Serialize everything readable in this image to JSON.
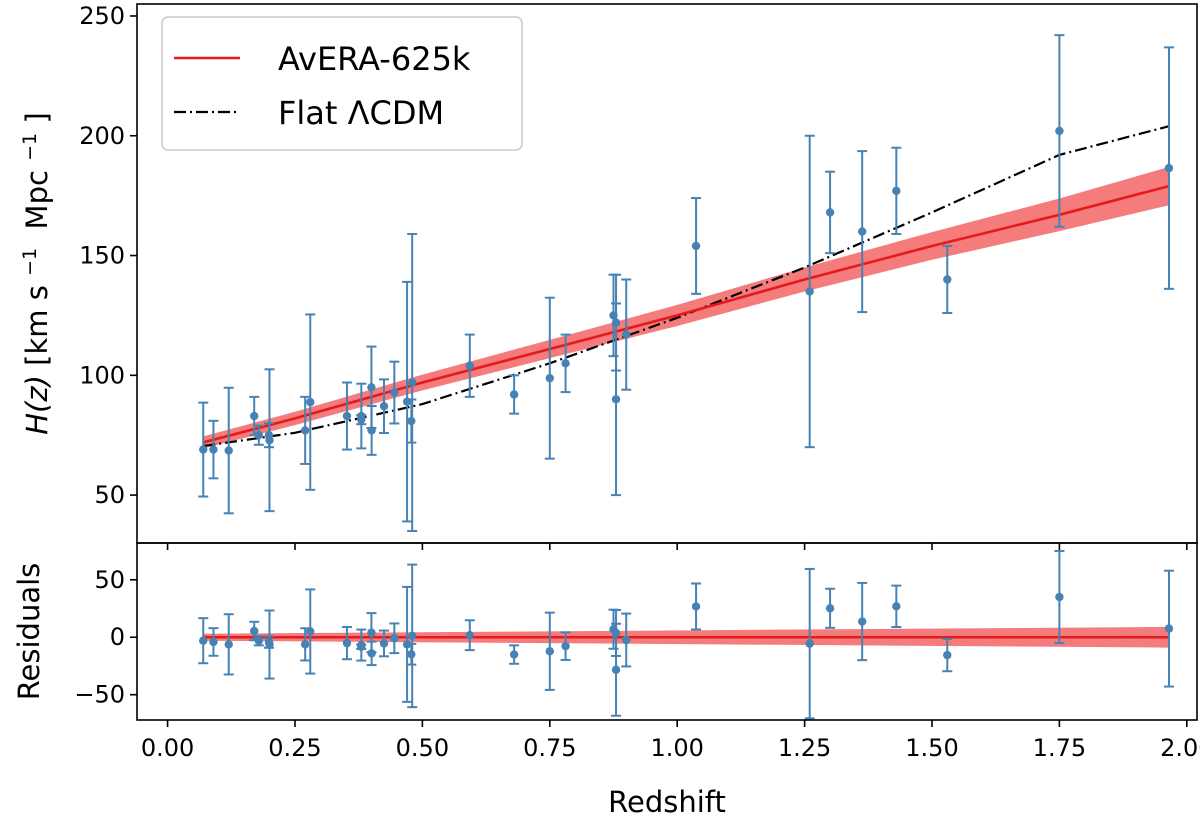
{
  "colors": {
    "data_points": "#4682b4",
    "model_line": "#e41a1c",
    "model_band": "#f47c7c",
    "lcdm_line": "#000000"
  },
  "chart_data": [
    {
      "panel": "main",
      "type": "scatter",
      "ylabel_italic": "H(z)",
      "ylabel_units": "[km s",
      "ylabel_sup1": "−1",
      "ylabel_mid": " Mpc",
      "ylabel_sup2": "−1",
      "ylabel_close": "]",
      "xlim": [
        -0.06,
        2.02
      ],
      "ylim": [
        30,
        255
      ],
      "yticks": [
        50,
        100,
        150,
        200,
        250
      ],
      "ytick_labels": [
        "50",
        "100",
        "150",
        "200",
        "250"
      ],
      "legend": {
        "placement": "top-left",
        "entries": [
          {
            "label": "AvERA-625k",
            "style": "solid-red"
          },
          {
            "label": "Flat ΛCDM",
            "style": "dashdot-black"
          }
        ]
      },
      "observations": {
        "z": [
          0.07,
          0.09,
          0.12,
          0.17,
          0.179,
          0.199,
          0.2,
          0.27,
          0.28,
          0.352,
          0.38,
          0.3802,
          0.4,
          0.4004,
          0.4247,
          0.44497,
          0.47,
          0.4783,
          0.48,
          0.593,
          0.68,
          0.75,
          0.781,
          0.875,
          0.88,
          0.88,
          0.9,
          1.037,
          1.26,
          1.3,
          1.363,
          1.43,
          1.53,
          1.75,
          1.965
        ],
        "H": [
          69,
          69,
          68.6,
          83,
          75,
          75,
          72.9,
          77,
          88.8,
          83,
          81.5,
          83,
          95,
          77,
          87.1,
          92.8,
          89,
          80.9,
          97,
          104,
          92,
          98.8,
          105,
          125,
          90,
          122,
          117,
          154,
          135,
          168,
          160,
          177,
          140,
          202,
          186.5
        ],
        "err": [
          19.6,
          12,
          26.2,
          8,
          4,
          5,
          29.6,
          14,
          36.6,
          14,
          1.9,
          13.5,
          17,
          10.2,
          11.2,
          12.9,
          50,
          9,
          62,
          13,
          8,
          33.6,
          12,
          17,
          40,
          20,
          23,
          20,
          65,
          17,
          33.6,
          18,
          14,
          40,
          50.4
        ]
      },
      "model_AvERA_625k": {
        "z": [
          0.07,
          0.25,
          0.5,
          0.75,
          1.0,
          1.25,
          1.5,
          1.75,
          1.965
        ],
        "H": [
          72,
          82,
          97,
          111,
          125,
          140,
          154,
          167,
          179
        ],
        "band_halfwidth": [
          2.5,
          2.8,
          3.3,
          3.8,
          4.4,
          5.0,
          5.8,
          6.8,
          8.0
        ]
      },
      "model_flat_LCDM": {
        "z": [
          0.07,
          0.25,
          0.5,
          0.75,
          1.0,
          1.25,
          1.5,
          1.75,
          1.965
        ],
        "H": [
          70.5,
          76,
          88,
          105,
          124,
          145,
          168,
          192,
          204
        ]
      }
    },
    {
      "panel": "residuals",
      "type": "scatter",
      "ylabel": "Residuals",
      "xlabel": "Redshift",
      "xlim": [
        -0.06,
        2.02
      ],
      "ylim": [
        -72,
        82
      ],
      "yticks": [
        -50,
        0,
        50
      ],
      "ytick_labels": [
        "−50",
        "0",
        "50"
      ],
      "xticks": [
        0.0,
        0.25,
        0.5,
        0.75,
        1.0,
        1.25,
        1.5,
        1.75,
        2.0
      ],
      "xtick_labels": [
        "0.00",
        "0.25",
        "0.50",
        "0.75",
        "1.00",
        "1.25",
        "1.50",
        "1.75",
        "2.00"
      ],
      "residual_band_halfwidth": {
        "z": [
          0.07,
          1.965
        ],
        "hw": [
          3,
          9
        ]
      }
    }
  ]
}
